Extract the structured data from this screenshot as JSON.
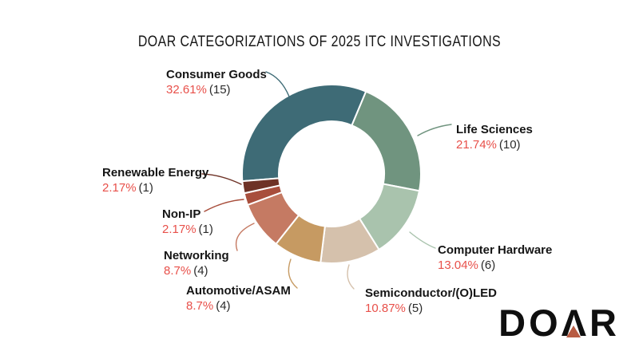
{
  "title": "DOAR CATEGORIZATIONS OF 2025 ITC INVESTIGATIONS",
  "chart_data": {
    "type": "pie",
    "subtype": "donut",
    "title": "DOAR CATEGORIZATIONS OF 2025 ITC INVESTIGATIONS",
    "direction": "clockwise",
    "start_angle_deg": 265.3,
    "legend_position": "callout-labels-around-chart",
    "categories": [
      "Consumer Goods",
      "Life Sciences",
      "Computer Hardware",
      "Semiconductor/(O)LED",
      "Automotive/ASAM",
      "Networking",
      "Non-IP",
      "Renewable Energy"
    ],
    "values": [
      15,
      10,
      6,
      5,
      4,
      4,
      1,
      1
    ],
    "segments": [
      {
        "label": "Consumer Goods",
        "percent": 32.61,
        "percent_label": "32.61%",
        "count": 15,
        "count_label": "(15)",
        "color": "#3e6b76"
      },
      {
        "label": "Life Sciences",
        "percent": 21.74,
        "percent_label": "21.74%",
        "count": 10,
        "count_label": "(10)",
        "color": "#70947f"
      },
      {
        "label": "Computer Hardware",
        "percent": 13.04,
        "percent_label": "13.04%",
        "count": 6,
        "count_label": "(6)",
        "color": "#a9c3ad"
      },
      {
        "label": "Semiconductor/(O)LED",
        "percent": 10.87,
        "percent_label": "10.87%",
        "count": 5,
        "count_label": "(5)",
        "color": "#d5c1ac"
      },
      {
        "label": "Automotive/ASAM",
        "percent": 8.7,
        "percent_label": "8.7%",
        "count": 4,
        "count_label": "(4)",
        "color": "#c69a62"
      },
      {
        "label": "Networking",
        "percent": 8.7,
        "percent_label": "8.7%",
        "count": 4,
        "count_label": "(4)",
        "color": "#c57a63"
      },
      {
        "label": "Non-IP",
        "percent": 2.17,
        "percent_label": "2.17%",
        "count": 1,
        "count_label": "(1)",
        "color": "#a84e3c"
      },
      {
        "label": "Renewable Energy",
        "percent": 2.17,
        "percent_label": "2.17%",
        "count": 1,
        "count_label": "(1)",
        "color": "#6e3226"
      }
    ]
  },
  "colors": {
    "background": "#ffffff",
    "title_text": "#161616",
    "label_text": "#151515",
    "percent_text": "#e8504a",
    "count_text": "#2b2b2b",
    "slice_gap": "#ffffff",
    "logo_text": "#0f0f0f",
    "logo_triangle": "#b85c43"
  },
  "logo": {
    "text": "DOAR"
  }
}
